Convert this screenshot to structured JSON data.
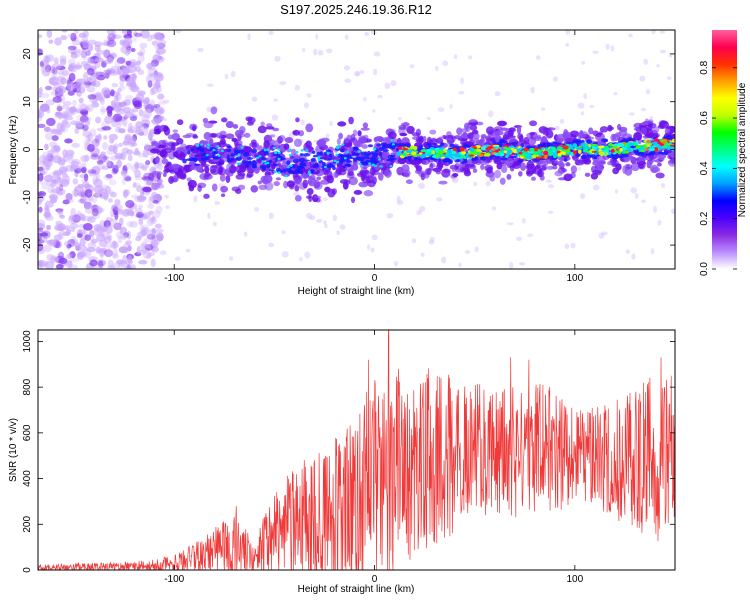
{
  "title": "S197.2025.246.19.36.R12",
  "colors": {
    "signal": "#f03a3a",
    "frame": "#000000",
    "speck": "#cc99ff",
    "blob": "#6a11ea"
  },
  "chart_data": [
    {
      "type": "heatmap",
      "name": "spectrogram",
      "title": "S197.2025.246.19.36.R12",
      "xlabel": "Height of straight line (km)",
      "ylabel": "Frequency (Hz)",
      "xlim": [
        -168,
        150
      ],
      "ylim": [
        -25,
        25
      ],
      "xticks": [
        -100,
        0,
        100
      ],
      "xtick_labels": [
        "-100",
        "0",
        "100"
      ],
      "yticks": [
        -20,
        -10,
        0,
        10,
        20
      ],
      "ytick_labels": [
        "-20",
        "-10",
        "0",
        "10",
        "20"
      ],
      "colorbar": {
        "label": "Normalized spectral amplitude",
        "range": [
          0.0,
          0.95
        ],
        "ticks": [
          0.0,
          0.2,
          0.4,
          0.6,
          0.8
        ],
        "tick_labels": [
          "0.0",
          "0.2",
          "0.4",
          "0.6",
          "0.8"
        ],
        "colormap": [
          "#ffffff",
          "#b98cff",
          "#8a2be2",
          "#4b00ff",
          "#0000ff",
          "#00a0ff",
          "#00ffff",
          "#00ff7f",
          "#00ff00",
          "#c0ff00",
          "#ffff00",
          "#ffa000",
          "#ff3000",
          "#ff0050",
          "#ff60a0"
        ]
      },
      "ridge_profile": [
        {
          "x": -100,
          "f": -2
        },
        {
          "x": -80,
          "f": -1
        },
        {
          "x": -60,
          "f": -2
        },
        {
          "x": -40,
          "f": -3
        },
        {
          "x": -20,
          "f": -2
        },
        {
          "x": 0,
          "f": -1
        },
        {
          "x": 20,
          "f": -0.5
        },
        {
          "x": 40,
          "f": -1
        },
        {
          "x": 60,
          "f": 0
        },
        {
          "x": 80,
          "f": -1
        },
        {
          "x": 100,
          "f": 0
        },
        {
          "x": 120,
          "f": 0
        },
        {
          "x": 140,
          "f": 1
        }
      ]
    },
    {
      "type": "line",
      "name": "snr",
      "xlabel": "Height of straight line (km)",
      "ylabel": "SNR (10 * v/v)",
      "xlim": [
        -168,
        150
      ],
      "ylim": [
        0,
        1050
      ],
      "xticks": [
        -100,
        0,
        100
      ],
      "xtick_labels": [
        "-100",
        "0",
        "100"
      ],
      "yticks": [
        0,
        200,
        400,
        600,
        800,
        1000
      ],
      "ytick_labels": [
        "0",
        "200",
        "400",
        "600",
        "800",
        "1000"
      ],
      "series": [
        {
          "name": "SNR",
          "envelope": [
            {
              "x": -168,
              "base": 10,
              "amp": 15
            },
            {
              "x": -130,
              "base": 15,
              "amp": 20
            },
            {
              "x": -110,
              "base": 20,
              "amp": 25
            },
            {
              "x": -100,
              "base": 30,
              "amp": 40
            },
            {
              "x": -90,
              "base": 50,
              "amp": 70
            },
            {
              "x": -80,
              "base": 80,
              "amp": 110
            },
            {
              "x": -70,
              "base": 110,
              "amp": 150
            },
            {
              "x": -60,
              "base": 60,
              "amp": 70
            },
            {
              "x": -50,
              "base": 150,
              "amp": 200
            },
            {
              "x": -40,
              "base": 200,
              "amp": 250
            },
            {
              "x": -30,
              "base": 230,
              "amp": 300
            },
            {
              "x": -20,
              "base": 250,
              "amp": 330
            },
            {
              "x": -10,
              "base": 300,
              "amp": 380
            },
            {
              "x": 0,
              "base": 400,
              "amp": 450
            },
            {
              "x": 10,
              "base": 420,
              "amp": 500
            },
            {
              "x": 20,
              "base": 450,
              "amp": 450
            },
            {
              "x": 30,
              "base": 480,
              "amp": 400
            },
            {
              "x": 40,
              "base": 500,
              "amp": 350
            },
            {
              "x": 50,
              "base": 520,
              "amp": 300
            },
            {
              "x": 60,
              "base": 520,
              "amp": 280
            },
            {
              "x": 70,
              "base": 530,
              "amp": 300
            },
            {
              "x": 80,
              "base": 520,
              "amp": 320
            },
            {
              "x": 90,
              "base": 510,
              "amp": 280
            },
            {
              "x": 100,
              "base": 500,
              "amp": 200
            },
            {
              "x": 110,
              "base": 500,
              "amp": 220
            },
            {
              "x": 120,
              "base": 480,
              "amp": 260
            },
            {
              "x": 130,
              "base": 470,
              "amp": 320
            },
            {
              "x": 140,
              "base": 480,
              "amp": 380
            },
            {
              "x": 150,
              "base": 500,
              "amp": 320
            }
          ],
          "peaks": [
            {
              "x": 7,
              "y": 1050
            },
            {
              "x": -3,
              "y": 920
            },
            {
              "x": 12,
              "y": 880
            },
            {
              "x": 68,
              "y": 930
            },
            {
              "x": 77,
              "y": 920
            },
            {
              "x": 143,
              "y": 930
            },
            {
              "x": -69,
              "y": 280
            },
            {
              "x": 148,
              "y": 850
            }
          ]
        }
      ]
    }
  ]
}
